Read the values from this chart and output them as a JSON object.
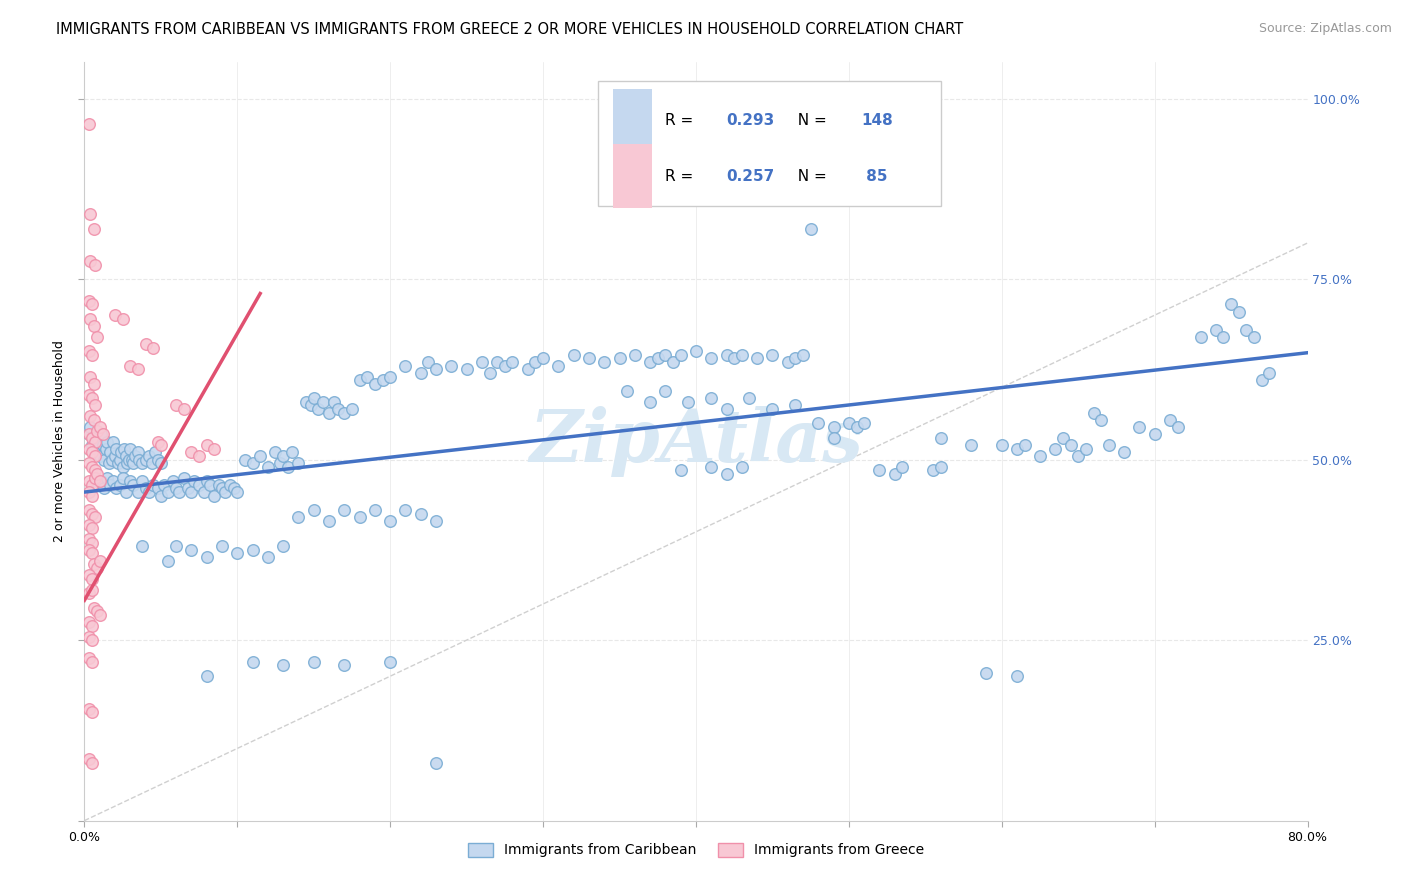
{
  "title": "IMMIGRANTS FROM CARIBBEAN VS IMMIGRANTS FROM GREECE 2 OR MORE VEHICLES IN HOUSEHOLD CORRELATION CHART",
  "source": "Source: ZipAtlas.com",
  "ylabel": "2 or more Vehicles in Household",
  "xlim": [
    0.0,
    0.8
  ],
  "ylim": [
    0.0,
    1.05
  ],
  "xticks": [
    0.0,
    0.1,
    0.2,
    0.3,
    0.4,
    0.5,
    0.6,
    0.7,
    0.8
  ],
  "xticklabels": [
    "0.0%",
    "",
    "",
    "",
    "",
    "",
    "",
    "",
    "80.0%"
  ],
  "yticks": [
    0.0,
    0.25,
    0.5,
    0.75,
    1.0
  ],
  "right_yticklabels": [
    "",
    "25.0%",
    "50.0%",
    "75.0%",
    "100.0%"
  ],
  "blue_R": 0.293,
  "blue_N": 148,
  "pink_R": 0.257,
  "pink_N": 85,
  "blue_fill_color": "#c5d8ef",
  "pink_fill_color": "#f8c8d4",
  "blue_edge_color": "#7badd4",
  "pink_edge_color": "#f090aa",
  "blue_line_color": "#4472c4",
  "pink_line_color": "#e05070",
  "diag_color": "#d0d0d0",
  "grid_color": "#e8e8e8",
  "right_tick_color": "#4472c4",
  "legend_label_blue": "Immigrants from Caribbean",
  "legend_label_pink": "Immigrants from Greece",
  "title_fontsize": 10.5,
  "source_fontsize": 9,
  "axis_label_fontsize": 9,
  "tick_fontsize": 9,
  "watermark": "ZipAtlas",
  "watermark_color": "#d8e8f4",
  "blue_line_x0": 0.0,
  "blue_line_x1": 0.8,
  "blue_line_y0": 0.455,
  "blue_line_y1": 0.648,
  "pink_line_x0": 0.0,
  "pink_line_x1": 0.115,
  "pink_line_y0": 0.305,
  "pink_line_y1": 0.73,
  "blue_scatter": [
    [
      0.003,
      0.535
    ],
    [
      0.004,
      0.545
    ],
    [
      0.005,
      0.52
    ],
    [
      0.006,
      0.51
    ],
    [
      0.007,
      0.53
    ],
    [
      0.008,
      0.515
    ],
    [
      0.009,
      0.525
    ],
    [
      0.01,
      0.505
    ],
    [
      0.011,
      0.535
    ],
    [
      0.012,
      0.52
    ],
    [
      0.013,
      0.5
    ],
    [
      0.014,
      0.515
    ],
    [
      0.015,
      0.525
    ],
    [
      0.016,
      0.495
    ],
    [
      0.017,
      0.51
    ],
    [
      0.018,
      0.5
    ],
    [
      0.019,
      0.525
    ],
    [
      0.02,
      0.505
    ],
    [
      0.021,
      0.515
    ],
    [
      0.022,
      0.495
    ],
    [
      0.023,
      0.5
    ],
    [
      0.024,
      0.51
    ],
    [
      0.025,
      0.49
    ],
    [
      0.026,
      0.515
    ],
    [
      0.027,
      0.505
    ],
    [
      0.028,
      0.495
    ],
    [
      0.029,
      0.5
    ],
    [
      0.03,
      0.515
    ],
    [
      0.031,
      0.5
    ],
    [
      0.032,
      0.495
    ],
    [
      0.033,
      0.505
    ],
    [
      0.035,
      0.51
    ],
    [
      0.036,
      0.5
    ],
    [
      0.038,
      0.495
    ],
    [
      0.04,
      0.5
    ],
    [
      0.042,
      0.505
    ],
    [
      0.044,
      0.495
    ],
    [
      0.046,
      0.51
    ],
    [
      0.048,
      0.5
    ],
    [
      0.05,
      0.495
    ],
    [
      0.007,
      0.47
    ],
    [
      0.009,
      0.465
    ],
    [
      0.011,
      0.47
    ],
    [
      0.013,
      0.46
    ],
    [
      0.015,
      0.475
    ],
    [
      0.017,
      0.465
    ],
    [
      0.019,
      0.47
    ],
    [
      0.021,
      0.46
    ],
    [
      0.023,
      0.465
    ],
    [
      0.025,
      0.475
    ],
    [
      0.027,
      0.455
    ],
    [
      0.03,
      0.47
    ],
    [
      0.032,
      0.465
    ],
    [
      0.035,
      0.455
    ],
    [
      0.038,
      0.47
    ],
    [
      0.04,
      0.46
    ],
    [
      0.042,
      0.455
    ],
    [
      0.045,
      0.465
    ],
    [
      0.048,
      0.46
    ],
    [
      0.05,
      0.45
    ],
    [
      0.052,
      0.465
    ],
    [
      0.055,
      0.455
    ],
    [
      0.058,
      0.47
    ],
    [
      0.06,
      0.46
    ],
    [
      0.062,
      0.455
    ],
    [
      0.065,
      0.475
    ],
    [
      0.068,
      0.46
    ],
    [
      0.07,
      0.455
    ],
    [
      0.072,
      0.47
    ],
    [
      0.075,
      0.465
    ],
    [
      0.078,
      0.455
    ],
    [
      0.08,
      0.47
    ],
    [
      0.082,
      0.465
    ],
    [
      0.085,
      0.45
    ],
    [
      0.088,
      0.465
    ],
    [
      0.09,
      0.46
    ],
    [
      0.092,
      0.455
    ],
    [
      0.095,
      0.465
    ],
    [
      0.098,
      0.46
    ],
    [
      0.1,
      0.455
    ],
    [
      0.105,
      0.5
    ],
    [
      0.11,
      0.495
    ],
    [
      0.115,
      0.505
    ],
    [
      0.12,
      0.49
    ],
    [
      0.125,
      0.51
    ],
    [
      0.128,
      0.495
    ],
    [
      0.13,
      0.505
    ],
    [
      0.133,
      0.49
    ],
    [
      0.136,
      0.51
    ],
    [
      0.14,
      0.495
    ],
    [
      0.145,
      0.58
    ],
    [
      0.148,
      0.575
    ],
    [
      0.15,
      0.585
    ],
    [
      0.153,
      0.57
    ],
    [
      0.156,
      0.58
    ],
    [
      0.16,
      0.565
    ],
    [
      0.163,
      0.58
    ],
    [
      0.166,
      0.57
    ],
    [
      0.17,
      0.565
    ],
    [
      0.175,
      0.57
    ],
    [
      0.18,
      0.61
    ],
    [
      0.185,
      0.615
    ],
    [
      0.19,
      0.605
    ],
    [
      0.195,
      0.61
    ],
    [
      0.2,
      0.615
    ],
    [
      0.21,
      0.63
    ],
    [
      0.22,
      0.62
    ],
    [
      0.225,
      0.635
    ],
    [
      0.23,
      0.625
    ],
    [
      0.24,
      0.63
    ],
    [
      0.25,
      0.625
    ],
    [
      0.26,
      0.635
    ],
    [
      0.265,
      0.62
    ],
    [
      0.27,
      0.635
    ],
    [
      0.275,
      0.63
    ],
    [
      0.28,
      0.635
    ],
    [
      0.29,
      0.625
    ],
    [
      0.295,
      0.635
    ],
    [
      0.3,
      0.64
    ],
    [
      0.31,
      0.63
    ],
    [
      0.32,
      0.645
    ],
    [
      0.33,
      0.64
    ],
    [
      0.34,
      0.635
    ],
    [
      0.35,
      0.64
    ],
    [
      0.36,
      0.645
    ],
    [
      0.37,
      0.635
    ],
    [
      0.375,
      0.64
    ],
    [
      0.38,
      0.645
    ],
    [
      0.385,
      0.635
    ],
    [
      0.39,
      0.645
    ],
    [
      0.4,
      0.65
    ],
    [
      0.41,
      0.64
    ],
    [
      0.42,
      0.645
    ],
    [
      0.425,
      0.64
    ],
    [
      0.43,
      0.645
    ],
    [
      0.44,
      0.64
    ],
    [
      0.45,
      0.645
    ],
    [
      0.46,
      0.635
    ],
    [
      0.465,
      0.64
    ],
    [
      0.47,
      0.645
    ],
    [
      0.038,
      0.38
    ],
    [
      0.055,
      0.36
    ],
    [
      0.06,
      0.38
    ],
    [
      0.07,
      0.375
    ],
    [
      0.08,
      0.365
    ],
    [
      0.09,
      0.38
    ],
    [
      0.1,
      0.37
    ],
    [
      0.11,
      0.375
    ],
    [
      0.12,
      0.365
    ],
    [
      0.13,
      0.38
    ],
    [
      0.14,
      0.42
    ],
    [
      0.15,
      0.43
    ],
    [
      0.16,
      0.415
    ],
    [
      0.17,
      0.43
    ],
    [
      0.18,
      0.42
    ],
    [
      0.19,
      0.43
    ],
    [
      0.2,
      0.415
    ],
    [
      0.21,
      0.43
    ],
    [
      0.22,
      0.425
    ],
    [
      0.23,
      0.415
    ],
    [
      0.08,
      0.2
    ],
    [
      0.11,
      0.22
    ],
    [
      0.13,
      0.215
    ],
    [
      0.15,
      0.22
    ],
    [
      0.17,
      0.215
    ],
    [
      0.2,
      0.22
    ],
    [
      0.23,
      0.08
    ],
    [
      0.355,
      0.595
    ],
    [
      0.37,
      0.58
    ],
    [
      0.38,
      0.595
    ],
    [
      0.395,
      0.58
    ],
    [
      0.41,
      0.585
    ],
    [
      0.42,
      0.57
    ],
    [
      0.435,
      0.585
    ],
    [
      0.45,
      0.57
    ],
    [
      0.465,
      0.575
    ],
    [
      0.48,
      0.55
    ],
    [
      0.49,
      0.545
    ],
    [
      0.5,
      0.55
    ],
    [
      0.505,
      0.545
    ],
    [
      0.51,
      0.55
    ],
    [
      0.39,
      0.485
    ],
    [
      0.41,
      0.49
    ],
    [
      0.42,
      0.48
    ],
    [
      0.43,
      0.49
    ],
    [
      0.52,
      0.485
    ],
    [
      0.53,
      0.48
    ],
    [
      0.535,
      0.49
    ],
    [
      0.475,
      0.82
    ],
    [
      0.49,
      0.53
    ],
    [
      0.56,
      0.53
    ],
    [
      0.58,
      0.52
    ],
    [
      0.6,
      0.52
    ],
    [
      0.61,
      0.515
    ],
    [
      0.615,
      0.52
    ],
    [
      0.625,
      0.505
    ],
    [
      0.635,
      0.515
    ],
    [
      0.64,
      0.53
    ],
    [
      0.645,
      0.52
    ],
    [
      0.65,
      0.505
    ],
    [
      0.655,
      0.515
    ],
    [
      0.66,
      0.565
    ],
    [
      0.665,
      0.555
    ],
    [
      0.67,
      0.52
    ],
    [
      0.68,
      0.51
    ],
    [
      0.69,
      0.545
    ],
    [
      0.7,
      0.535
    ],
    [
      0.71,
      0.555
    ],
    [
      0.715,
      0.545
    ],
    [
      0.73,
      0.67
    ],
    [
      0.74,
      0.68
    ],
    [
      0.745,
      0.67
    ],
    [
      0.75,
      0.715
    ],
    [
      0.755,
      0.705
    ],
    [
      0.76,
      0.68
    ],
    [
      0.765,
      0.67
    ],
    [
      0.77,
      0.61
    ],
    [
      0.775,
      0.62
    ],
    [
      0.59,
      0.205
    ],
    [
      0.61,
      0.2
    ],
    [
      0.555,
      0.485
    ],
    [
      0.56,
      0.49
    ]
  ],
  "pink_scatter": [
    [
      0.003,
      0.965
    ],
    [
      0.004,
      0.84
    ],
    [
      0.006,
      0.82
    ],
    [
      0.004,
      0.775
    ],
    [
      0.007,
      0.77
    ],
    [
      0.003,
      0.72
    ],
    [
      0.005,
      0.715
    ],
    [
      0.004,
      0.695
    ],
    [
      0.006,
      0.685
    ],
    [
      0.008,
      0.67
    ],
    [
      0.003,
      0.65
    ],
    [
      0.005,
      0.645
    ],
    [
      0.004,
      0.615
    ],
    [
      0.006,
      0.605
    ],
    [
      0.003,
      0.59
    ],
    [
      0.005,
      0.585
    ],
    [
      0.007,
      0.575
    ],
    [
      0.004,
      0.56
    ],
    [
      0.006,
      0.555
    ],
    [
      0.003,
      0.535
    ],
    [
      0.005,
      0.53
    ],
    [
      0.007,
      0.525
    ],
    [
      0.003,
      0.515
    ],
    [
      0.005,
      0.51
    ],
    [
      0.007,
      0.505
    ],
    [
      0.008,
      0.54
    ],
    [
      0.01,
      0.545
    ],
    [
      0.012,
      0.535
    ],
    [
      0.003,
      0.495
    ],
    [
      0.005,
      0.49
    ],
    [
      0.007,
      0.485
    ],
    [
      0.003,
      0.47
    ],
    [
      0.005,
      0.465
    ],
    [
      0.007,
      0.475
    ],
    [
      0.008,
      0.48
    ],
    [
      0.01,
      0.47
    ],
    [
      0.003,
      0.455
    ],
    [
      0.005,
      0.45
    ],
    [
      0.003,
      0.43
    ],
    [
      0.005,
      0.425
    ],
    [
      0.007,
      0.42
    ],
    [
      0.003,
      0.41
    ],
    [
      0.005,
      0.405
    ],
    [
      0.003,
      0.39
    ],
    [
      0.005,
      0.385
    ],
    [
      0.003,
      0.375
    ],
    [
      0.005,
      0.37
    ],
    [
      0.006,
      0.355
    ],
    [
      0.008,
      0.35
    ],
    [
      0.01,
      0.36
    ],
    [
      0.003,
      0.34
    ],
    [
      0.005,
      0.335
    ],
    [
      0.003,
      0.315
    ],
    [
      0.005,
      0.32
    ],
    [
      0.006,
      0.295
    ],
    [
      0.008,
      0.29
    ],
    [
      0.01,
      0.285
    ],
    [
      0.003,
      0.275
    ],
    [
      0.005,
      0.27
    ],
    [
      0.003,
      0.255
    ],
    [
      0.005,
      0.25
    ],
    [
      0.003,
      0.225
    ],
    [
      0.005,
      0.22
    ],
    [
      0.003,
      0.155
    ],
    [
      0.005,
      0.15
    ],
    [
      0.003,
      0.085
    ],
    [
      0.005,
      0.08
    ],
    [
      0.02,
      0.7
    ],
    [
      0.025,
      0.695
    ],
    [
      0.03,
      0.63
    ],
    [
      0.035,
      0.625
    ],
    [
      0.04,
      0.66
    ],
    [
      0.045,
      0.655
    ],
    [
      0.048,
      0.525
    ],
    [
      0.05,
      0.52
    ],
    [
      0.06,
      0.575
    ],
    [
      0.065,
      0.57
    ],
    [
      0.07,
      0.51
    ],
    [
      0.075,
      0.505
    ],
    [
      0.08,
      0.52
    ],
    [
      0.085,
      0.515
    ]
  ]
}
